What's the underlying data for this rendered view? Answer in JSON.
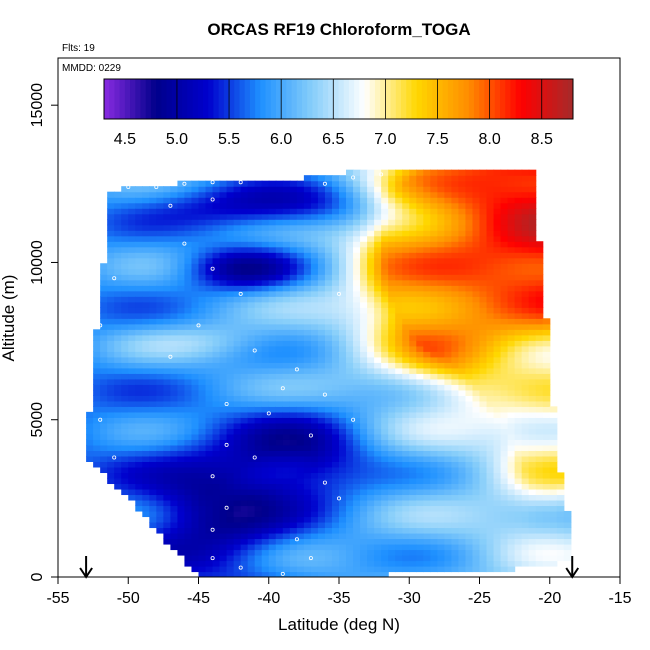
{
  "chart_data": {
    "type": "heatmap",
    "title": "ORCAS RF19 Chloroform_TOGA",
    "xlabel": "Latitude (deg N)",
    "ylabel": "Altitude (m)",
    "xlim": [
      -55,
      -15
    ],
    "ylim": [
      0,
      16500
    ],
    "x_ticks": [
      -55,
      -50,
      -45,
      -40,
      -35,
      -30,
      -25,
      -20,
      -15
    ],
    "y_ticks": [
      0,
      5000,
      10000,
      15000
    ],
    "annotations": {
      "flights": "Flts: 19",
      "date": "MMDD: 0229"
    },
    "colorbar": {
      "min": 4.3,
      "max": 8.8,
      "ticks": [
        4.5,
        5.0,
        5.5,
        6.0,
        6.5,
        7.0,
        7.5,
        8.0,
        8.5
      ],
      "tick_labels": [
        "4.5",
        "5.0",
        "5.5",
        "6.0",
        "6.5",
        "7.0",
        "7.5",
        "8.0",
        "8.5"
      ],
      "separators": [
        5.0,
        5.5,
        6.0,
        6.5,
        7.0,
        7.5,
        8.0,
        8.5
      ],
      "colors": [
        "#8a2be2",
        "#00008b",
        "#0000cd",
        "#1e90ff",
        "#87cefa",
        "#ffffff",
        "#ffd700",
        "#ff8c00",
        "#ff0000",
        "#a52a2a"
      ]
    },
    "arrows": [
      -53,
      -18.4
    ],
    "domain_outline": [
      [
        -53,
        4000
      ],
      [
        -52.4,
        7000
      ],
      [
        -52,
        9500
      ],
      [
        -51.5,
        10600
      ],
      [
        -51.5,
        12300
      ],
      [
        -47,
        12500
      ],
      [
        -41,
        12600
      ],
      [
        -37,
        12700
      ],
      [
        -34,
        12900
      ],
      [
        -27,
        13000
      ],
      [
        -21,
        13000
      ],
      [
        -21,
        12000
      ],
      [
        -20.5,
        9500
      ],
      [
        -20,
        7000
      ],
      [
        -19.5,
        4000
      ],
      [
        -18.5,
        1500
      ],
      [
        -18.5,
        500
      ],
      [
        -21,
        300
      ],
      [
        -30,
        100
      ],
      [
        -40,
        0
      ],
      [
        -45,
        0
      ],
      [
        -47,
        1000
      ],
      [
        -50,
        2500
      ],
      [
        -53,
        3800
      ]
    ],
    "field_description": "interpolated concentration curtain: low values (5-6) in southwest, high values (7.5-8.7) in upper northeast",
    "fluxes": [
      {
        "lat": -24,
        "alt": 10500,
        "value": 8.7,
        "spread": [
          6,
          2500
        ]
      },
      {
        "lat": -22,
        "alt": 11800,
        "value": 8.5,
        "spread": [
          5,
          1500
        ]
      },
      {
        "lat": -26,
        "alt": 8500,
        "value": 7.8,
        "spread": [
          6,
          2500
        ]
      },
      {
        "lat": -28,
        "alt": 11000,
        "value": 7.2,
        "spread": [
          5,
          3000
        ]
      },
      {
        "lat": -22,
        "alt": 6000,
        "value": 6.6,
        "spread": [
          4,
          2000
        ]
      },
      {
        "lat": -20,
        "alt": 4000,
        "value": 7.1,
        "spread": [
          3,
          1500
        ]
      },
      {
        "lat": -21,
        "alt": 1500,
        "value": 6.5,
        "spread": [
          4,
          1500
        ]
      },
      {
        "lat": -40,
        "alt": 11800,
        "value": 5.1,
        "spread": [
          8,
          800
        ]
      },
      {
        "lat": -44,
        "alt": 2000,
        "value": 4.9,
        "spread": [
          5,
          2000
        ]
      },
      {
        "lat": -38,
        "alt": 3800,
        "value": 5.0,
        "spread": [
          5,
          1500
        ]
      },
      {
        "lat": -44,
        "alt": 7500,
        "value": 6.3,
        "spread": [
          6,
          600
        ]
      },
      {
        "lat": -42,
        "alt": 9800,
        "value": 5.0,
        "spread": [
          4,
          700
        ]
      }
    ],
    "samples": [
      [
        -50,
        12400
      ],
      [
        -48,
        12400
      ],
      [
        -46,
        12500
      ],
      [
        -44,
        12550
      ],
      [
        -42,
        12550
      ],
      [
        -47,
        11800
      ],
      [
        -44,
        12000
      ],
      [
        -36,
        12500
      ],
      [
        -34,
        12700
      ],
      [
        -32,
        12800
      ],
      [
        -46,
        10600
      ],
      [
        -44,
        9800
      ],
      [
        -42,
        9000
      ],
      [
        -45,
        8000
      ],
      [
        -41,
        7200
      ],
      [
        -38,
        6600
      ],
      [
        -36,
        5800
      ],
      [
        -34,
        5000
      ],
      [
        -39,
        6000
      ],
      [
        -43,
        5500
      ],
      [
        -40,
        5200
      ],
      [
        -37,
        4500
      ],
      [
        -43,
        4200
      ],
      [
        -41,
        3800
      ],
      [
        -44,
        3200
      ],
      [
        -36,
        3000
      ],
      [
        -35,
        2500
      ],
      [
        -43,
        2200
      ],
      [
        -44,
        1500
      ],
      [
        -38,
        1200
      ],
      [
        -44,
        600
      ],
      [
        -42,
        300
      ],
      [
        -39,
        100
      ],
      [
        -37,
        600
      ],
      [
        -47,
        7000
      ],
      [
        -51,
        9500
      ],
      [
        -52,
        8000
      ],
      [
        -52,
        5000
      ],
      [
        -51,
        3800
      ],
      [
        -35,
        9000
      ]
    ]
  }
}
